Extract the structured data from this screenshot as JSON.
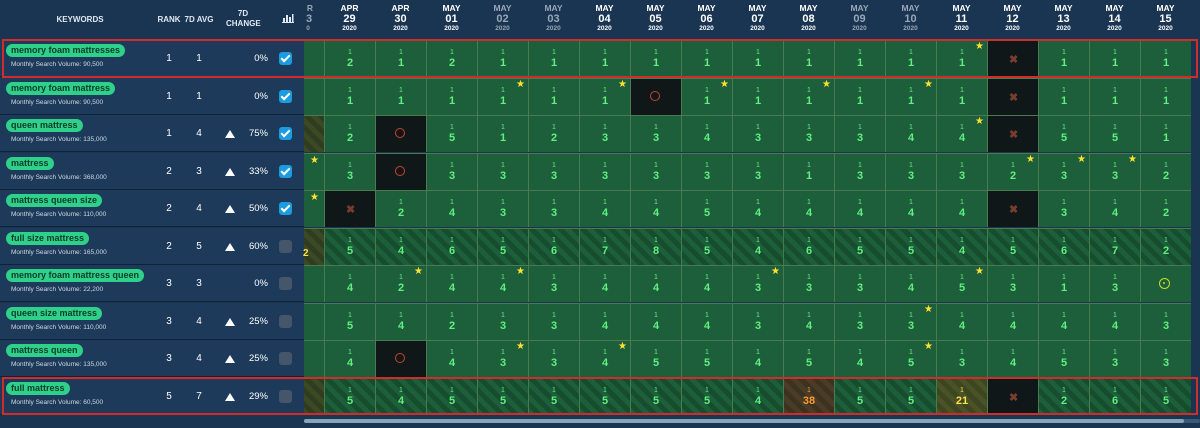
{
  "header": {
    "keywords": "KEYWORDS",
    "rank": "RANK",
    "avg": "7D AVG",
    "change": "7D CHANGE",
    "chart_icon": "bar-chart-icon"
  },
  "edge_header": {
    "mo": "R",
    "dy": "3",
    "yr": "0"
  },
  "dates": [
    {
      "mo": "APR",
      "dy": "29",
      "yr": "2020",
      "gray": false
    },
    {
      "mo": "APR",
      "dy": "30",
      "yr": "2020",
      "gray": false
    },
    {
      "mo": "MAY",
      "dy": "01",
      "yr": "2020",
      "gray": false
    },
    {
      "mo": "MAY",
      "dy": "02",
      "yr": "2020",
      "gray": true
    },
    {
      "mo": "MAY",
      "dy": "03",
      "yr": "2020",
      "gray": true
    },
    {
      "mo": "MAY",
      "dy": "04",
      "yr": "2020",
      "gray": false
    },
    {
      "mo": "MAY",
      "dy": "05",
      "yr": "2020",
      "gray": false
    },
    {
      "mo": "MAY",
      "dy": "06",
      "yr": "2020",
      "gray": false
    },
    {
      "mo": "MAY",
      "dy": "07",
      "yr": "2020",
      "gray": false
    },
    {
      "mo": "MAY",
      "dy": "08",
      "yr": "2020",
      "gray": false
    },
    {
      "mo": "MAY",
      "dy": "09",
      "yr": "2020",
      "gray": true
    },
    {
      "mo": "MAY",
      "dy": "10",
      "yr": "2020",
      "gray": true
    },
    {
      "mo": "MAY",
      "dy": "11",
      "yr": "2020",
      "gray": false
    },
    {
      "mo": "MAY",
      "dy": "12",
      "yr": "2020",
      "gray": false
    },
    {
      "mo": "MAY",
      "dy": "13",
      "yr": "2020",
      "gray": false
    },
    {
      "mo": "MAY",
      "dy": "14",
      "yr": "2020",
      "gray": false
    },
    {
      "mo": "MAY",
      "dy": "15",
      "yr": "2020",
      "gray": false
    }
  ],
  "keywords": [
    {
      "name": "memory foam mattresses",
      "volume": "Monthly Search Volume: 90,500",
      "rank": "1",
      "avg": "1",
      "arrow": false,
      "change": "0%",
      "checked": true,
      "selected": true,
      "edge": {
        "style": "norm",
        "star": false,
        "num": ""
      },
      "cells": [
        [
          "1",
          "2",
          "n",
          0
        ],
        [
          "1",
          "1",
          "n",
          0
        ],
        [
          "1",
          "2",
          "n",
          0
        ],
        [
          "1",
          "1",
          "n",
          0
        ],
        [
          "1",
          "1",
          "n",
          0
        ],
        [
          "1",
          "1",
          "n",
          0
        ],
        [
          "1",
          "1",
          "n",
          0
        ],
        [
          "1",
          "1",
          "n",
          0
        ],
        [
          "1",
          "1",
          "n",
          0
        ],
        [
          "1",
          "1",
          "n",
          0
        ],
        [
          "1",
          "1",
          "n",
          0
        ],
        [
          "1",
          "1",
          "n",
          0
        ],
        [
          "1",
          "1",
          "n",
          1
        ],
        [
          "",
          "",
          "x",
          0
        ],
        [
          "1",
          "1",
          "n",
          0
        ],
        [
          "1",
          "1",
          "n",
          0
        ],
        [
          "1",
          "1",
          "n",
          0
        ]
      ]
    },
    {
      "name": "memory foam mattress",
      "volume": "Monthly Search Volume: 90,500",
      "rank": "1",
      "avg": "1",
      "arrow": false,
      "change": "0%",
      "checked": true,
      "selected": false,
      "edge": {
        "style": "norm",
        "star": false,
        "num": ""
      },
      "cells": [
        [
          "1",
          "1",
          "n",
          0
        ],
        [
          "1",
          "1",
          "n",
          0
        ],
        [
          "1",
          "1",
          "n",
          0
        ],
        [
          "1",
          "1",
          "n",
          1
        ],
        [
          "1",
          "1",
          "n",
          0
        ],
        [
          "1",
          "1",
          "n",
          1
        ],
        [
          "",
          "",
          "r",
          0
        ],
        [
          "1",
          "1",
          "n",
          1
        ],
        [
          "1",
          "1",
          "n",
          0
        ],
        [
          "1",
          "1",
          "n",
          1
        ],
        [
          "1",
          "1",
          "n",
          0
        ],
        [
          "1",
          "1",
          "n",
          1
        ],
        [
          "1",
          "1",
          "n",
          0
        ],
        [
          "",
          "",
          "x",
          0
        ],
        [
          "1",
          "1",
          "n",
          0
        ],
        [
          "1",
          "1",
          "n",
          0
        ],
        [
          "1",
          "1",
          "n",
          0
        ]
      ]
    },
    {
      "name": "queen mattress",
      "volume": "Monthly Search Volume: 135,000",
      "rank": "1",
      "avg": "4",
      "arrow": true,
      "change": "75%",
      "checked": true,
      "selected": false,
      "edge": {
        "style": "hatch",
        "star": false,
        "num": ""
      },
      "cells": [
        [
          "1",
          "2",
          "n",
          0
        ],
        [
          "",
          "",
          "r",
          0
        ],
        [
          "1",
          "5",
          "n",
          0
        ],
        [
          "1",
          "1",
          "n",
          0
        ],
        [
          "1",
          "2",
          "n",
          0
        ],
        [
          "1",
          "3",
          "n",
          0
        ],
        [
          "1",
          "3",
          "n",
          0
        ],
        [
          "1",
          "4",
          "n",
          0
        ],
        [
          "1",
          "3",
          "n",
          0
        ],
        [
          "1",
          "3",
          "n",
          0
        ],
        [
          "1",
          "3",
          "n",
          0
        ],
        [
          "1",
          "4",
          "n",
          0
        ],
        [
          "1",
          "4",
          "n",
          1
        ],
        [
          "",
          "",
          "x",
          0
        ],
        [
          "1",
          "5",
          "n",
          0
        ],
        [
          "1",
          "5",
          "n",
          0
        ],
        [
          "1",
          "1",
          "n",
          0
        ]
      ]
    },
    {
      "name": "mattress",
      "volume": "Monthly Search Volume: 368,000",
      "rank": "2",
      "avg": "3",
      "arrow": true,
      "change": "33%",
      "checked": true,
      "selected": false,
      "edge": {
        "style": "norm",
        "star": true,
        "num": ""
      },
      "cells": [
        [
          "1",
          "3",
          "n",
          0
        ],
        [
          "",
          "",
          "r",
          0
        ],
        [
          "1",
          "3",
          "n",
          0
        ],
        [
          "1",
          "3",
          "n",
          0
        ],
        [
          "1",
          "3",
          "n",
          0
        ],
        [
          "1",
          "3",
          "n",
          0
        ],
        [
          "1",
          "3",
          "n",
          0
        ],
        [
          "1",
          "3",
          "n",
          0
        ],
        [
          "1",
          "3",
          "n",
          0
        ],
        [
          "1",
          "1",
          "n",
          0
        ],
        [
          "1",
          "3",
          "n",
          0
        ],
        [
          "1",
          "3",
          "n",
          0
        ],
        [
          "1",
          "3",
          "n",
          0
        ],
        [
          "1",
          "2",
          "n",
          1
        ],
        [
          "1",
          "3",
          "n",
          1
        ],
        [
          "1",
          "3",
          "n",
          1
        ],
        [
          "1",
          "2",
          "n",
          0
        ]
      ]
    },
    {
      "name": "mattress queen size",
      "volume": "Monthly Search Volume: 110,000",
      "rank": "2",
      "avg": "4",
      "arrow": true,
      "change": "50%",
      "checked": true,
      "selected": false,
      "edge": {
        "style": "norm",
        "star": true,
        "num": ""
      },
      "cells": [
        [
          "",
          "",
          "x",
          0
        ],
        [
          "1",
          "2",
          "n",
          0
        ],
        [
          "1",
          "4",
          "n",
          0
        ],
        [
          "1",
          "3",
          "n",
          0
        ],
        [
          "1",
          "3",
          "n",
          0
        ],
        [
          "1",
          "4",
          "n",
          0
        ],
        [
          "1",
          "4",
          "n",
          0
        ],
        [
          "1",
          "5",
          "n",
          0
        ],
        [
          "1",
          "4",
          "n",
          0
        ],
        [
          "1",
          "4",
          "n",
          0
        ],
        [
          "1",
          "4",
          "n",
          0
        ],
        [
          "1",
          "4",
          "n",
          0
        ],
        [
          "1",
          "4",
          "n",
          0
        ],
        [
          "",
          "",
          "x",
          0
        ],
        [
          "1",
          "3",
          "n",
          0
        ],
        [
          "1",
          "4",
          "n",
          0
        ],
        [
          "1",
          "2",
          "n",
          0
        ]
      ]
    },
    {
      "name": "full size mattress",
      "volume": "Monthly Search Volume: 165,000",
      "rank": "2",
      "avg": "5",
      "arrow": true,
      "change": "60%",
      "checked": false,
      "selected": false,
      "edge": {
        "style": "hatch",
        "star": false,
        "num": "2"
      },
      "cells": [
        [
          "1",
          "5",
          "h",
          0
        ],
        [
          "1",
          "4",
          "h",
          0
        ],
        [
          "1",
          "6",
          "h",
          0
        ],
        [
          "1",
          "5",
          "h",
          0
        ],
        [
          "1",
          "6",
          "h",
          0
        ],
        [
          "1",
          "7",
          "h",
          0
        ],
        [
          "1",
          "8",
          "h",
          0
        ],
        [
          "1",
          "5",
          "h",
          0
        ],
        [
          "1",
          "4",
          "h",
          0
        ],
        [
          "1",
          "6",
          "h",
          0
        ],
        [
          "1",
          "5",
          "h",
          0
        ],
        [
          "1",
          "5",
          "h",
          0
        ],
        [
          "1",
          "4",
          "h",
          0
        ],
        [
          "1",
          "5",
          "h",
          0
        ],
        [
          "1",
          "6",
          "h",
          0
        ],
        [
          "1",
          "7",
          "h",
          0
        ],
        [
          "1",
          "2",
          "h",
          0
        ]
      ]
    },
    {
      "name": "memory foam mattress queen",
      "volume": "Monthly Search Volume: 22,200",
      "rank": "3",
      "avg": "3",
      "arrow": false,
      "change": "0%",
      "checked": false,
      "selected": false,
      "edge": {
        "style": "norm",
        "star": false,
        "num": ""
      },
      "cells": [
        [
          "1",
          "4",
          "n",
          0
        ],
        [
          "1",
          "2",
          "n",
          1
        ],
        [
          "1",
          "4",
          "n",
          0
        ],
        [
          "1",
          "4",
          "n",
          1
        ],
        [
          "1",
          "3",
          "n",
          0
        ],
        [
          "1",
          "4",
          "n",
          0
        ],
        [
          "1",
          "4",
          "n",
          0
        ],
        [
          "1",
          "4",
          "n",
          0
        ],
        [
          "1",
          "3",
          "n",
          1
        ],
        [
          "1",
          "3",
          "n",
          0
        ],
        [
          "1",
          "3",
          "n",
          0
        ],
        [
          "1",
          "4",
          "n",
          0
        ],
        [
          "1",
          "5",
          "n",
          1
        ],
        [
          "1",
          "3",
          "n",
          0
        ],
        [
          "1",
          "1",
          "n",
          0
        ],
        [
          "1",
          "3",
          "n",
          0
        ],
        [
          "",
          "",
          "g",
          0
        ]
      ]
    },
    {
      "name": "queen size mattress",
      "volume": "Monthly Search Volume: 110,000",
      "rank": "3",
      "avg": "4",
      "arrow": true,
      "change": "25%",
      "checked": false,
      "selected": false,
      "edge": {
        "style": "norm",
        "star": false,
        "num": ""
      },
      "cells": [
        [
          "1",
          "5",
          "n",
          0
        ],
        [
          "1",
          "4",
          "n",
          0
        ],
        [
          "1",
          "2",
          "n",
          0
        ],
        [
          "1",
          "3",
          "n",
          0
        ],
        [
          "1",
          "3",
          "n",
          0
        ],
        [
          "1",
          "4",
          "n",
          0
        ],
        [
          "1",
          "4",
          "n",
          0
        ],
        [
          "1",
          "4",
          "n",
          0
        ],
        [
          "1",
          "3",
          "n",
          0
        ],
        [
          "1",
          "4",
          "n",
          0
        ],
        [
          "1",
          "3",
          "n",
          0
        ],
        [
          "1",
          "3",
          "n",
          1
        ],
        [
          "1",
          "4",
          "n",
          0
        ],
        [
          "1",
          "4",
          "n",
          0
        ],
        [
          "1",
          "4",
          "n",
          0
        ],
        [
          "1",
          "4",
          "n",
          0
        ],
        [
          "1",
          "3",
          "n",
          0
        ]
      ]
    },
    {
      "name": "mattress queen",
      "volume": "Monthly Search Volume: 135,000",
      "rank": "3",
      "avg": "4",
      "arrow": true,
      "change": "25%",
      "checked": false,
      "selected": false,
      "edge": {
        "style": "norm",
        "star": false,
        "num": ""
      },
      "cells": [
        [
          "1",
          "4",
          "n",
          0
        ],
        [
          "",
          "",
          "r",
          0
        ],
        [
          "1",
          "4",
          "n",
          0
        ],
        [
          "1",
          "3",
          "n",
          1
        ],
        [
          "1",
          "3",
          "n",
          0
        ],
        [
          "1",
          "4",
          "n",
          1
        ],
        [
          "1",
          "5",
          "n",
          0
        ],
        [
          "1",
          "5",
          "n",
          0
        ],
        [
          "1",
          "4",
          "n",
          0
        ],
        [
          "1",
          "5",
          "n",
          0
        ],
        [
          "1",
          "4",
          "n",
          0
        ],
        [
          "1",
          "5",
          "n",
          1
        ],
        [
          "1",
          "3",
          "n",
          0
        ],
        [
          "1",
          "4",
          "n",
          0
        ],
        [
          "1",
          "5",
          "n",
          0
        ],
        [
          "1",
          "3",
          "n",
          0
        ],
        [
          "1",
          "3",
          "n",
          0
        ]
      ]
    },
    {
      "name": "full mattress",
      "volume": "Monthly Search Volume: 60,500",
      "rank": "5",
      "avg": "7",
      "arrow": true,
      "change": "29%",
      "checked": false,
      "selected": true,
      "edge": {
        "style": "hatch",
        "star": false,
        "num": ""
      },
      "cells": [
        [
          "1",
          "5",
          "h",
          0
        ],
        [
          "1",
          "4",
          "h",
          0
        ],
        [
          "1",
          "5",
          "h",
          0
        ],
        [
          "1",
          "5",
          "h",
          0
        ],
        [
          "1",
          "5",
          "h",
          0
        ],
        [
          "1",
          "5",
          "h",
          0
        ],
        [
          "1",
          "5",
          "h",
          0
        ],
        [
          "1",
          "5",
          "h",
          0
        ],
        [
          "1",
          "4",
          "h",
          0
        ],
        [
          "1",
          "38",
          "o",
          0
        ],
        [
          "1",
          "5",
          "h",
          0
        ],
        [
          "1",
          "5",
          "h",
          0
        ],
        [
          "1",
          "21",
          "y",
          0
        ],
        [
          "",
          "",
          "x",
          0
        ],
        [
          "1",
          "2",
          "h",
          0
        ],
        [
          "1",
          "6",
          "h",
          0
        ],
        [
          "1",
          "5",
          "h",
          0
        ]
      ]
    }
  ]
}
